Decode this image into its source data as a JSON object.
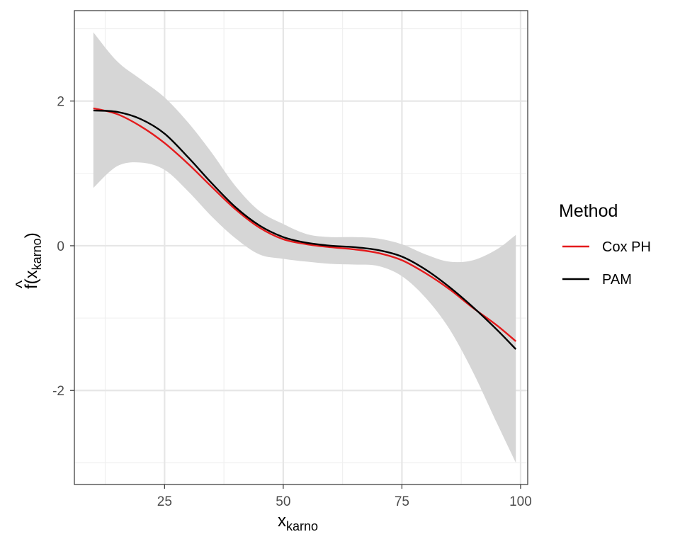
{
  "chart_data": {
    "type": "line",
    "x_axis": {
      "label_main": "x",
      "label_sub": "karno",
      "lim": [
        6,
        101.5
      ],
      "ticks": [
        25,
        50,
        75,
        100
      ],
      "tick_labels": [
        "25",
        "50",
        "75",
        "100"
      ],
      "minor_ticks": [
        12.5,
        37.5,
        62.5,
        87.5
      ]
    },
    "y_axis": {
      "label_hat": "^",
      "label_f": "f",
      "label_open": "(",
      "label_main": "x",
      "label_sub": "karno",
      "label_close": ")",
      "lim": [
        -3.3,
        3.25
      ],
      "ticks": [
        2,
        0,
        -2
      ],
      "tick_labels": [
        "2",
        "0",
        "-2"
      ],
      "minor_ticks": [
        3,
        1,
        -1,
        -3
      ]
    },
    "grid": true,
    "legend": {
      "title": "Method",
      "position": "right",
      "entries": [
        {
          "label": "Cox PH",
          "color": "#e41a1c"
        },
        {
          "label": "PAM",
          "color": "#000000"
        }
      ]
    },
    "ribbon": {
      "color": "#d6d6d6",
      "x": [
        10,
        15,
        20,
        25,
        30,
        35,
        40,
        45,
        50,
        55,
        60,
        65,
        70,
        75,
        80,
        85,
        90,
        95,
        99
      ],
      "lower": [
        0.8,
        1.1,
        1.15,
        1.05,
        0.75,
        0.4,
        0.1,
        -0.12,
        -0.18,
        -0.22,
        -0.25,
        -0.26,
        -0.28,
        -0.42,
        -0.72,
        -1.15,
        -1.75,
        -2.45,
        -3.0
      ],
      "upper": [
        2.95,
        2.55,
        2.3,
        2.05,
        1.7,
        1.28,
        0.82,
        0.48,
        0.3,
        0.16,
        0.12,
        0.12,
        0.1,
        0.02,
        -0.12,
        -0.22,
        -0.2,
        -0.05,
        0.15
      ]
    },
    "series": [
      {
        "name": "Cox PH",
        "color": "#e41a1c",
        "x": [
          10,
          15,
          20,
          25,
          30,
          35,
          40,
          45,
          50,
          55,
          60,
          65,
          70,
          75,
          80,
          85,
          90,
          95,
          99
        ],
        "values": [
          1.9,
          1.82,
          1.65,
          1.42,
          1.13,
          0.81,
          0.5,
          0.25,
          0.09,
          0.02,
          -0.02,
          -0.05,
          -0.1,
          -0.2,
          -0.38,
          -0.6,
          -0.86,
          -1.1,
          -1.32
        ]
      },
      {
        "name": "PAM",
        "color": "#000000",
        "x": [
          10,
          15,
          20,
          25,
          30,
          35,
          40,
          45,
          50,
          55,
          60,
          65,
          70,
          75,
          80,
          85,
          90,
          95,
          99
        ],
        "values": [
          1.87,
          1.85,
          1.75,
          1.55,
          1.22,
          0.86,
          0.53,
          0.28,
          0.12,
          0.04,
          0.0,
          -0.02,
          -0.06,
          -0.15,
          -0.33,
          -0.57,
          -0.85,
          -1.16,
          -1.43
        ]
      }
    ]
  }
}
